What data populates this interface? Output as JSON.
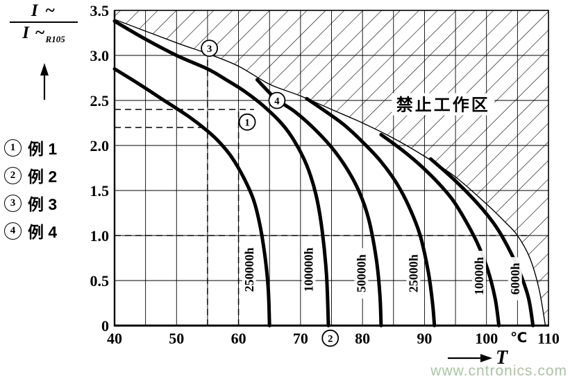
{
  "watermark": "www.cntronics.com",
  "y_axis_fraction": {
    "numerator": "I ~",
    "denominator": "I ~",
    "denominator_sub": "R105"
  },
  "x_axis": {
    "symbol": "T"
  },
  "legend": {
    "items": [
      {
        "num": "1",
        "label": "例 1"
      },
      {
        "num": "2",
        "label": "例 2"
      },
      {
        "num": "3",
        "label": "例 3"
      },
      {
        "num": "4",
        "label": "例 4"
      }
    ]
  },
  "chart_data": {
    "type": "line",
    "title": "",
    "xlabel": "T (℃)",
    "ylabel": "I~ / I~R105",
    "xlim": [
      40,
      110
    ],
    "ylim": [
      0,
      3.5
    ],
    "x_ticks": [
      40,
      50,
      60,
      70,
      80,
      90,
      100,
      110
    ],
    "x_unit": {
      "label": "℃",
      "x": 105.2
    },
    "y_ticks": [
      "0",
      "0.5",
      "1.0",
      "1.5",
      "2.0",
      "2.5",
      "3.0",
      "3.5"
    ],
    "grid": {
      "x_step": 5,
      "y_step": 0.5
    },
    "forbidden_zone": {
      "label": "禁止工作区",
      "label_pos": [
        93,
        2.45
      ],
      "boundary": [
        [
          40,
          3.4
        ],
        [
          50,
          3.14
        ],
        [
          55,
          3.02
        ],
        [
          60,
          2.88
        ],
        [
          65,
          2.68
        ],
        [
          70,
          2.55
        ],
        [
          75,
          2.4
        ],
        [
          80,
          2.25
        ],
        [
          85,
          2.08
        ],
        [
          90,
          1.88
        ],
        [
          95,
          1.65
        ],
        [
          100,
          1.35
        ],
        [
          103,
          1.15
        ],
        [
          105,
          1.0
        ],
        [
          107,
          0.75
        ],
        [
          108.5,
          0.4
        ],
        [
          109.5,
          0
        ]
      ]
    },
    "series": [
      {
        "name": "250000h",
        "label_pos": [
          61.7,
          0.62
        ],
        "points": [
          [
            40,
            2.85
          ],
          [
            44,
            2.68
          ],
          [
            48,
            2.5
          ],
          [
            52,
            2.32
          ],
          [
            55,
            2.16
          ],
          [
            57,
            2.03
          ],
          [
            59,
            1.86
          ],
          [
            61,
            1.62
          ],
          [
            62.5,
            1.38
          ],
          [
            63.5,
            1.1
          ],
          [
            64.3,
            0.75
          ],
          [
            64.8,
            0.4
          ],
          [
            65,
            0
          ]
        ]
      },
      {
        "name": "100000h",
        "label_pos": [
          71.3,
          0.62
        ],
        "points": [
          [
            40,
            3.38
          ],
          [
            45,
            3.18
          ],
          [
            50,
            3.0
          ],
          [
            55,
            2.85
          ],
          [
            58,
            2.73
          ],
          [
            61,
            2.6
          ],
          [
            64,
            2.44
          ],
          [
            67,
            2.24
          ],
          [
            69,
            2.05
          ],
          [
            71,
            1.78
          ],
          [
            72.5,
            1.45
          ],
          [
            73.5,
            1.05
          ],
          [
            74.2,
            0.55
          ],
          [
            74.5,
            0
          ]
        ]
      },
      {
        "name": "50000h",
        "label_pos": [
          79.8,
          0.58
        ],
        "points": [
          [
            63,
            2.73
          ],
          [
            66,
            2.52
          ],
          [
            69,
            2.38
          ],
          [
            72,
            2.2
          ],
          [
            75,
            1.98
          ],
          [
            77.5,
            1.74
          ],
          [
            79.5,
            1.48
          ],
          [
            81,
            1.18
          ],
          [
            82.2,
            0.75
          ],
          [
            82.8,
            0.35
          ],
          [
            83,
            0
          ]
        ]
      },
      {
        "name": "25000h",
        "label_pos": [
          88.2,
          0.58
        ],
        "points": [
          [
            71,
            2.52
          ],
          [
            74,
            2.38
          ],
          [
            77,
            2.23
          ],
          [
            80,
            2.04
          ],
          [
            83,
            1.82
          ],
          [
            85.5,
            1.58
          ],
          [
            87.5,
            1.32
          ],
          [
            89.3,
            1.0
          ],
          [
            90.6,
            0.6
          ],
          [
            91.3,
            0.25
          ],
          [
            91.6,
            0
          ]
        ]
      },
      {
        "name": "10000h",
        "label_pos": [
          98.8,
          0.55
        ],
        "points": [
          [
            83,
            2.12
          ],
          [
            86,
            1.97
          ],
          [
            89,
            1.8
          ],
          [
            92,
            1.6
          ],
          [
            94.5,
            1.4
          ],
          [
            96.5,
            1.18
          ],
          [
            98.5,
            0.92
          ],
          [
            100.2,
            0.62
          ],
          [
            101.4,
            0.3
          ],
          [
            102,
            0
          ]
        ]
      },
      {
        "name": "6000h",
        "label_pos": [
          104.6,
          0.52
        ],
        "points": [
          [
            91,
            1.85
          ],
          [
            94,
            1.67
          ],
          [
            97,
            1.47
          ],
          [
            100,
            1.24
          ],
          [
            102,
            1.05
          ],
          [
            104,
            0.8
          ],
          [
            105.5,
            0.57
          ],
          [
            106.8,
            0.3
          ],
          [
            107.5,
            0
          ]
        ]
      }
    ],
    "dashed_lines": [
      {
        "orient": "h",
        "at": 2.4,
        "from": 40,
        "to": 62.5
      },
      {
        "orient": "h",
        "at": 2.2,
        "from": 40,
        "to": 55
      },
      {
        "orient": "h",
        "at": 1.0,
        "from": 40,
        "to": 107
      },
      {
        "orient": "v",
        "at": 55,
        "from": 0,
        "to": 3.02
      },
      {
        "orient": "v",
        "at": 60,
        "from": 0,
        "to": 2.4
      }
    ],
    "annotations": [
      {
        "num": "3",
        "x": 55.3,
        "y": 3.08
      },
      {
        "num": "4",
        "x": 66.2,
        "y": 2.5
      },
      {
        "num": "1",
        "x": 61.4,
        "y": 2.26
      },
      {
        "num": "2",
        "x": 74.8,
        "y": -0.14
      }
    ]
  }
}
